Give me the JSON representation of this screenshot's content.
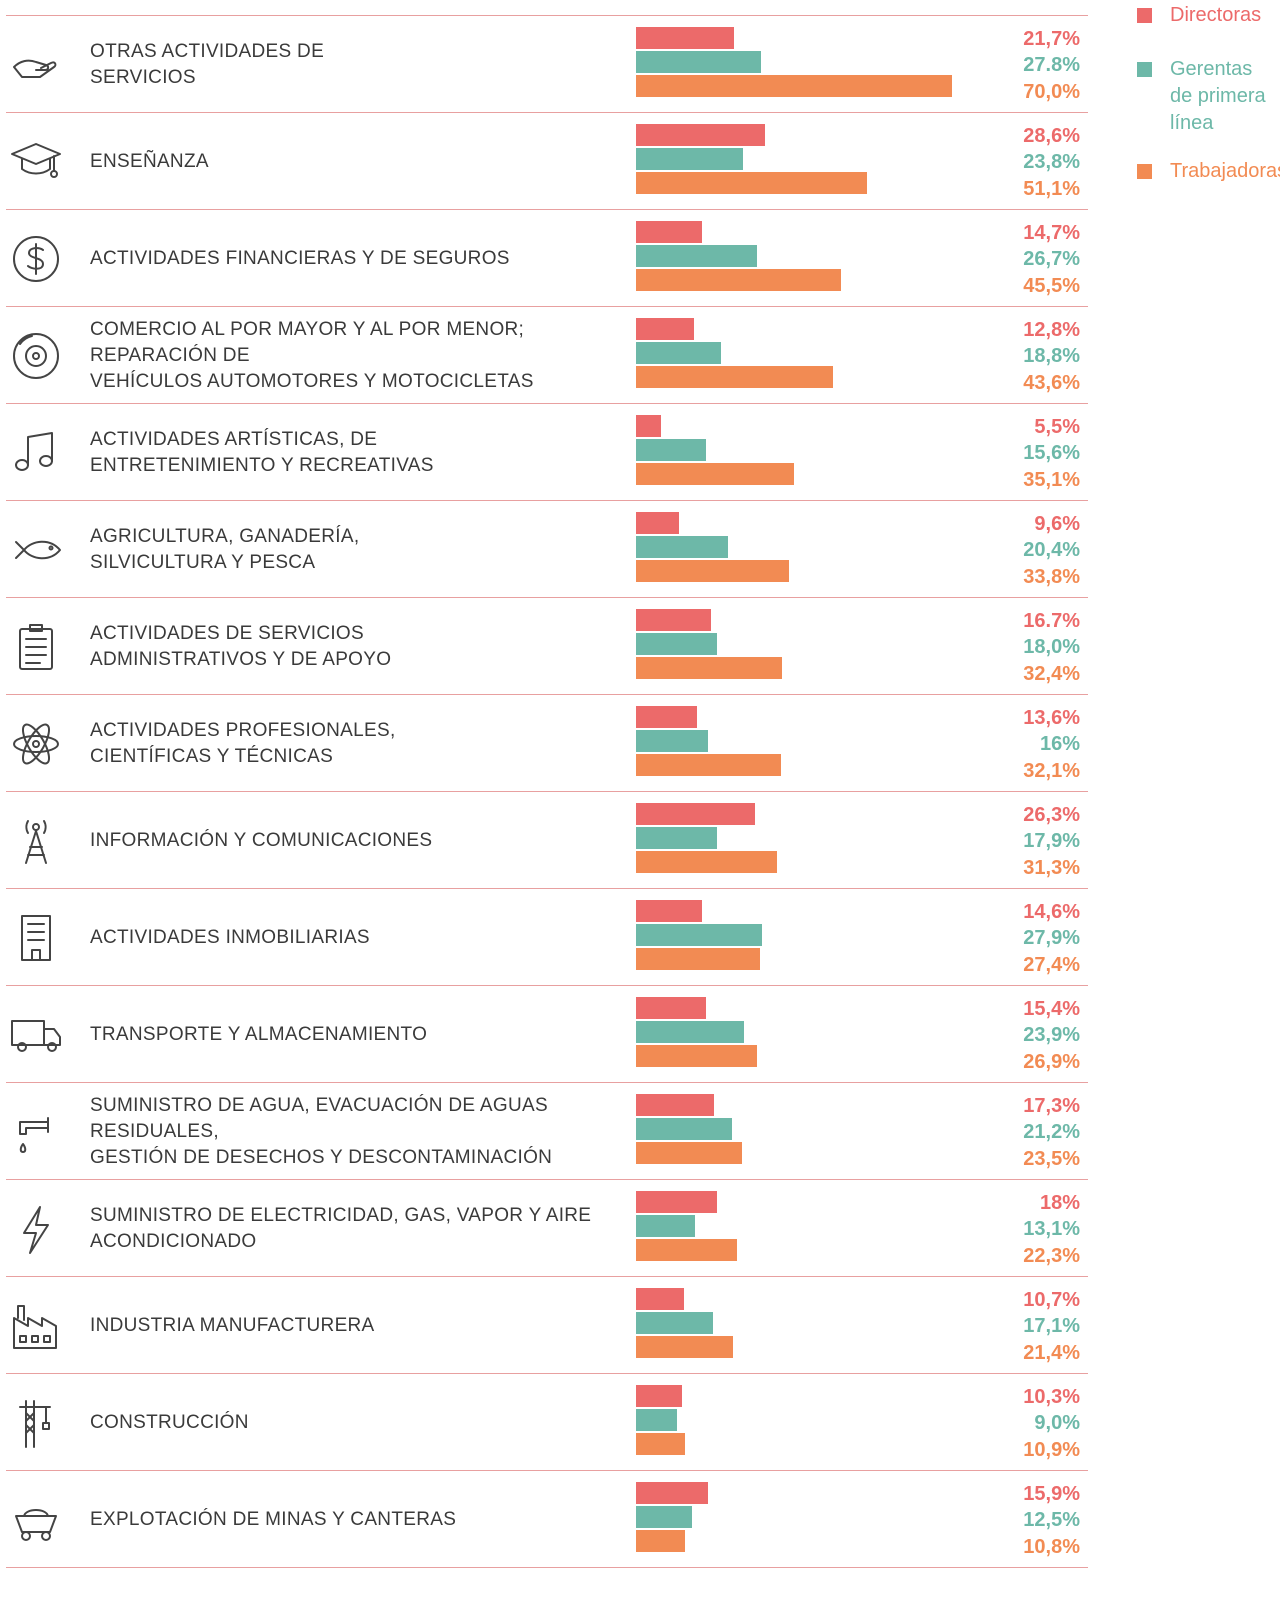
{
  "colors": {
    "directoras": "#ec6a6a",
    "gerentas": "#6db8a8",
    "trabajadoras": "#f28b53"
  },
  "legend": [
    {
      "label": "Directoras",
      "color": "#ec6a6a"
    },
    {
      "label": "Gerentas\nde primera\nlínea",
      "color": "#6db8a8"
    },
    {
      "label": "Trabajadoras",
      "color": "#f28b53"
    }
  ],
  "chart_data": {
    "type": "bar",
    "orientation": "horizontal",
    "series_names": [
      "Directoras",
      "Gerentas de primera línea",
      "Trabajadoras"
    ],
    "rows": [
      {
        "icon": "hand-icon",
        "label": "OTRAS ACTIVIDADES DE\nSERVICIOS",
        "values": [
          21.7,
          27.8,
          70.0
        ],
        "value_labels": [
          "21,7%",
          "27.8%",
          "70,0%"
        ]
      },
      {
        "icon": "graduation-cap-icon",
        "label": "ENSEÑANZA",
        "values": [
          28.6,
          23.8,
          51.1
        ],
        "value_labels": [
          "28,6%",
          "23,8%",
          "51,1%"
        ]
      },
      {
        "icon": "dollar-icon",
        "label": "ACTIVIDADES FINANCIERAS Y DE SEGUROS",
        "values": [
          14.7,
          26.7,
          45.5
        ],
        "value_labels": [
          "14,7%",
          "26,7%",
          "45,5%"
        ]
      },
      {
        "icon": "brake-disc-icon",
        "label": "COMERCIO AL POR MAYOR Y AL POR MENOR; REPARACIÓN DE\nVEHÍCULOS AUTOMOTORES Y MOTOCICLETAS",
        "values": [
          12.8,
          18.8,
          43.6
        ],
        "value_labels": [
          "12,8%",
          "18,8%",
          "43,6%"
        ]
      },
      {
        "icon": "music-note-icon",
        "label": "ACTIVIDADES ARTÍSTICAS, DE\nENTRETENIMIENTO Y RECREATIVAS",
        "values": [
          5.5,
          15.6,
          35.1
        ],
        "value_labels": [
          "5,5%",
          "15,6%",
          "35,1%"
        ]
      },
      {
        "icon": "fish-icon",
        "label": "AGRICULTURA, GANADERÍA,\nSILVICULTURA Y PESCA",
        "values": [
          9.6,
          20.4,
          33.8
        ],
        "value_labels": [
          "9,6%",
          "20,4%",
          "33,8%"
        ]
      },
      {
        "icon": "clipboard-icon",
        "label": "ACTIVIDADES DE SERVICIOS\nADMINISTRATIVOS Y DE APOYO",
        "values": [
          16.7,
          18.0,
          32.4
        ],
        "value_labels": [
          "16.7%",
          "18,0%",
          "32,4%"
        ]
      },
      {
        "icon": "atom-icon",
        "label": "ACTIVIDADES PROFESIONALES,\nCIENTÍFICAS Y TÉCNICAS",
        "values": [
          13.6,
          16,
          32.1
        ],
        "value_labels": [
          "13,6%",
          "16%",
          "32,1%"
        ]
      },
      {
        "icon": "antenna-icon",
        "label": "INFORMACIÓN Y COMUNICACIONES",
        "values": [
          26.3,
          17.9,
          31.3
        ],
        "value_labels": [
          "26,3%",
          "17,9%",
          "31,3%"
        ]
      },
      {
        "icon": "building-icon",
        "label": "ACTIVIDADES INMOBILIARIAS",
        "values": [
          14.6,
          27.9,
          27.4
        ],
        "value_labels": [
          "14,6%",
          "27,9%",
          "27,4%"
        ]
      },
      {
        "icon": "truck-icon",
        "label": "TRANSPORTE Y ALMACENAMIENTO",
        "values": [
          15.4,
          23.9,
          26.9
        ],
        "value_labels": [
          "15,4%",
          "23,9%",
          "26,9%"
        ]
      },
      {
        "icon": "faucet-icon",
        "label": "SUMINISTRO DE AGUA, EVACUACIÓN DE AGUAS RESIDUALES,\nGESTIÓN DE DESECHOS Y DESCONTAMINACIÓN",
        "values": [
          17.3,
          21.2,
          23.5
        ],
        "value_labels": [
          "17,3%",
          "21,2%",
          "23,5%"
        ]
      },
      {
        "icon": "lightning-icon",
        "label": "SUMINISTRO DE ELECTRICIDAD, GAS, VAPOR Y AIRE\nACONDICIONADO",
        "values": [
          18,
          13.1,
          22.3
        ],
        "value_labels": [
          "18%",
          "13,1%",
          "22,3%"
        ]
      },
      {
        "icon": "factory-icon",
        "label": "INDUSTRIA MANUFACTURERA",
        "values": [
          10.7,
          17.1,
          21.4
        ],
        "value_labels": [
          "10,7%",
          "17,1%",
          "21,4%"
        ]
      },
      {
        "icon": "crane-icon",
        "label": "CONSTRUCCIÓN",
        "values": [
          10.3,
          9.0,
          10.9
        ],
        "value_labels": [
          "10,3%",
          "9,0%",
          "10,9%"
        ]
      },
      {
        "icon": "mine-cart-icon",
        "label": "EXPLOTACIÓN DE MINAS Y CANTERAS",
        "values": [
          15.9,
          12.5,
          10.8
        ],
        "value_labels": [
          "15,9%",
          "12,5%",
          "10,8%"
        ]
      }
    ],
    "xlim": [
      0,
      70
    ],
    "grid": false,
    "legend_position": "top-right"
  }
}
